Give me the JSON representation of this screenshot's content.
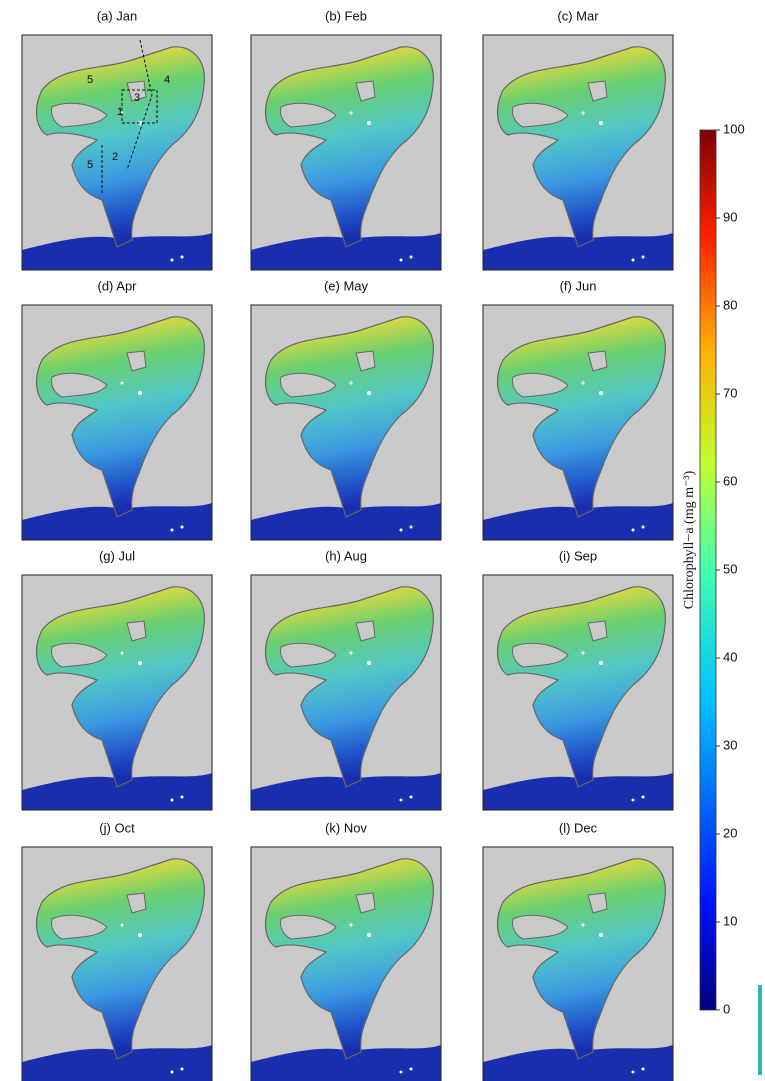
{
  "panels": [
    {
      "title": "(a) Jan",
      "region_labels": [
        "5",
        "4",
        "3",
        "1",
        "2",
        "5"
      ]
    },
    {
      "title": "(b) Feb"
    },
    {
      "title": "(c) Mar"
    },
    {
      "title": "(d) Apr"
    },
    {
      "title": "(e) May"
    },
    {
      "title": "(f) Jun"
    },
    {
      "title": "(g) Jul"
    },
    {
      "title": "(h) Aug"
    },
    {
      "title": "(i) Sep"
    },
    {
      "title": "(j) Oct"
    },
    {
      "title": "(k) Nov"
    },
    {
      "title": "(l) Dec"
    }
  ],
  "colorbar": {
    "label": "Chlorophyll−a (mg m⁻³)",
    "lim": [
      0,
      100
    ],
    "ticks": [
      0,
      10,
      20,
      30,
      40,
      50,
      60,
      70,
      80,
      90,
      100
    ]
  }
}
